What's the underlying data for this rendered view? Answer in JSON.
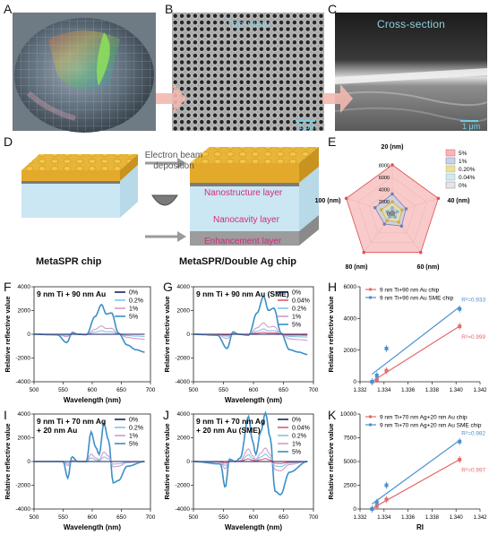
{
  "panels": {
    "A": "A",
    "B": "B",
    "C": "C",
    "D": "D",
    "E": "E",
    "F": "F",
    "G": "G",
    "H": "H",
    "I": "I",
    "J": "J",
    "K": "K"
  },
  "micrographs": {
    "top_view": "Top-view",
    "cross_section": "Cross-section",
    "scale": "1 μm"
  },
  "schematic": {
    "ebeam": "Electron beam\ndeposition",
    "nanostructure": "Nanostructure layer",
    "nanocavity": "Nanocavity layer",
    "enhancement": "Enhancement layer",
    "left_chip": "MetaSPR chip",
    "right_chip": "MetaSPR/Double Ag chip"
  },
  "colors": {
    "c0": "#1b1f5e",
    "c004": "#e05a7a",
    "c02": "#7fc6e6",
    "c1": "#d39ac9",
    "c5": "#3a8fc8",
    "red_fit": "#e56a6a",
    "blue_fit": "#4a90d0"
  },
  "chart_data": [
    {
      "panel": "E",
      "type": "radar",
      "axes": [
        "20 (nm)",
        "40 (nm)",
        "60 (nm)",
        "80 (nm)",
        "100 (nm)"
      ],
      "radial_ticks": [
        "8000",
        "6000",
        "4000",
        "2000",
        "0"
      ],
      "rlim": [
        0,
        8000
      ],
      "series": [
        {
          "name": "5%",
          "values": [
            8000,
            8000,
            8000,
            8000,
            8000
          ]
        },
        {
          "name": "1%",
          "values": [
            3200,
            2400,
            2600,
            2200,
            3000
          ]
        },
        {
          "name": "0.20%",
          "values": [
            1900,
            1700,
            1800,
            1500,
            1900
          ]
        },
        {
          "name": "0.04%",
          "values": [
            900,
            900,
            800,
            800,
            900
          ]
        },
        {
          "name": "0%",
          "values": [
            300,
            300,
            300,
            300,
            300
          ]
        }
      ]
    },
    {
      "panel": "F",
      "type": "line",
      "annotation": "9 nm Ti + 90 nm Au",
      "xlabel": "Wavelength (nm)",
      "ylabel": "Relative reflective value",
      "xlim": [
        500,
        700
      ],
      "ylim": [
        -4000,
        4000
      ],
      "xticks": [
        "500",
        "550",
        "600",
        "650",
        "700"
      ],
      "yticks": [
        "4000",
        "2000",
        "0",
        "-2000",
        "-4000"
      ],
      "series": [
        {
          "name": "0%",
          "amp": 0
        },
        {
          "name": "0.2%",
          "amp": 0.12
        },
        {
          "name": "1%",
          "amp": 0.28
        },
        {
          "name": "5%",
          "amp": 1
        }
      ],
      "profile": [
        [
          500,
          0
        ],
        [
          540,
          -50
        ],
        [
          556,
          -700
        ],
        [
          566,
          150
        ],
        [
          575,
          0
        ],
        [
          590,
          -40
        ],
        [
          605,
          1500
        ],
        [
          616,
          2500
        ],
        [
          624,
          1700
        ],
        [
          633,
          1800
        ],
        [
          645,
          100
        ],
        [
          660,
          -900
        ],
        [
          675,
          -1300
        ],
        [
          690,
          -1500
        ]
      ]
    },
    {
      "panel": "G",
      "type": "line",
      "annotation": "9 nm Ti + 90 nm Au (SME)",
      "xlabel": "Wavelength (nm)",
      "ylabel": "Relative reflective value",
      "xlim": [
        500,
        700
      ],
      "ylim": [
        -4000,
        4000
      ],
      "xticks": [
        "500",
        "550",
        "600",
        "650",
        "700"
      ],
      "yticks": [
        "4000",
        "2000",
        "0",
        "-2000",
        "-4000"
      ],
      "series": [
        {
          "name": "0%",
          "amp": 0
        },
        {
          "name": "0.04%",
          "amp": 0.05
        },
        {
          "name": "0.2%",
          "amp": 0.14
        },
        {
          "name": "1%",
          "amp": 0.3
        },
        {
          "name": "5%",
          "amp": 1
        }
      ],
      "profile": [
        [
          500,
          0
        ],
        [
          540,
          -80
        ],
        [
          556,
          -1200
        ],
        [
          566,
          200
        ],
        [
          575,
          0
        ],
        [
          592,
          -80
        ],
        [
          606,
          1800
        ],
        [
          617,
          3200
        ],
        [
          625,
          2000
        ],
        [
          634,
          2200
        ],
        [
          646,
          100
        ],
        [
          660,
          -1300
        ],
        [
          675,
          -1500
        ],
        [
          690,
          -1700
        ]
      ]
    },
    {
      "panel": "I",
      "type": "line",
      "annotation": "9 nm Ti + 70 nm Ag\n+ 20 nm Au",
      "xlabel": "Wavelength (nm)",
      "ylabel": "Relative reflective value",
      "xlim": [
        500,
        700
      ],
      "ylim": [
        -4000,
        4000
      ],
      "xticks": [
        "500",
        "550",
        "600",
        "650",
        "700"
      ],
      "yticks": [
        "4000",
        "2000",
        "0",
        "-2000",
        "-4000"
      ],
      "series": [
        {
          "name": "0%",
          "amp": 0
        },
        {
          "name": "0.2%",
          "amp": 0.12
        },
        {
          "name": "1%",
          "amp": 0.25
        },
        {
          "name": "5%",
          "amp": 1
        }
      ],
      "profile": [
        [
          500,
          0
        ],
        [
          550,
          0
        ],
        [
          558,
          -1400
        ],
        [
          565,
          400
        ],
        [
          575,
          0
        ],
        [
          590,
          0
        ],
        [
          598,
          2500
        ],
        [
          606,
          1200
        ],
        [
          612,
          600
        ],
        [
          620,
          3200
        ],
        [
          628,
          1800
        ],
        [
          636,
          -1800
        ],
        [
          645,
          -1600
        ],
        [
          660,
          -400
        ],
        [
          690,
          0
        ]
      ]
    },
    {
      "panel": "J",
      "type": "line",
      "annotation": "9 nm Ti + 70 nm Ag\n+ 20 nm Au (SME)",
      "xlabel": "Wavelength (nm)",
      "ylabel": "Relative reflective value",
      "xlim": [
        500,
        700
      ],
      "ylim": [
        -4000,
        4000
      ],
      "xticks": [
        "500",
        "550",
        "600",
        "650",
        "700"
      ],
      "yticks": [
        "4000",
        "2000",
        "0",
        "-2000",
        "-4000"
      ],
      "series": [
        {
          "name": "0%",
          "amp": 0
        },
        {
          "name": "0.04%",
          "amp": 0.06
        },
        {
          "name": "0.2%",
          "amp": 0.15
        },
        {
          "name": "1%",
          "amp": 0.28
        },
        {
          "name": "5%",
          "amp": 1
        }
      ],
      "profile": [
        [
          500,
          0
        ],
        [
          545,
          -200
        ],
        [
          553,
          -2200
        ],
        [
          560,
          200
        ],
        [
          570,
          0
        ],
        [
          578,
          300
        ],
        [
          592,
          3800
        ],
        [
          598,
          1800
        ],
        [
          604,
          600
        ],
        [
          612,
          2500
        ],
        [
          620,
          4100
        ],
        [
          628,
          2000
        ],
        [
          636,
          -2500
        ],
        [
          645,
          -2800
        ],
        [
          660,
          -900
        ],
        [
          690,
          0
        ]
      ]
    },
    {
      "panel": "H",
      "type": "scatter",
      "xlabel": "",
      "ylabel": "Relative reflective value",
      "xlim": [
        1.332,
        1.342
      ],
      "ylim": [
        0,
        6000
      ],
      "xticks": [
        "1.332",
        "1.334",
        "1.336",
        "1.338",
        "1.340",
        "1.342"
      ],
      "yticks": [
        "6000",
        "4000",
        "2000",
        "0"
      ],
      "series": [
        {
          "name": "9 nm Ti+90 nm Au chip",
          "x": [
            1.333,
            1.3334,
            1.3342,
            1.3403
          ],
          "y": [
            0,
            150,
            700,
            3500
          ],
          "r2": "R²=0.999"
        },
        {
          "name": "9 nm Ti+90 nm Au SME chip",
          "x": [
            1.333,
            1.3334,
            1.3342,
            1.3403
          ],
          "y": [
            0,
            400,
            2100,
            4600
          ],
          "r2": "R²=0.933"
        }
      ]
    },
    {
      "panel": "K",
      "type": "scatter",
      "xlabel": "RI",
      "ylabel": "Relative reflective value",
      "xlim": [
        1.332,
        1.342
      ],
      "ylim": [
        0,
        10000
      ],
      "xticks": [
        "1.332",
        "1.334",
        "1.336",
        "1.338",
        "1.340",
        "1.342"
      ],
      "yticks": [
        "10000",
        "7500",
        "5000",
        "2500",
        "0"
      ],
      "series": [
        {
          "name": "9 nm Ti+70 nm Ag+20 nm Au chip",
          "x": [
            1.333,
            1.3334,
            1.3342,
            1.3403
          ],
          "y": [
            0,
            300,
            1000,
            5200
          ],
          "r2": "R²=0.997"
        },
        {
          "name": "9 nm Ti+70 nm Ag+20 nm Au SME chip",
          "x": [
            1.333,
            1.3334,
            1.3342,
            1.3403
          ],
          "y": [
            0,
            700,
            2500,
            7100
          ],
          "r2": "R²=0.982"
        }
      ]
    }
  ]
}
